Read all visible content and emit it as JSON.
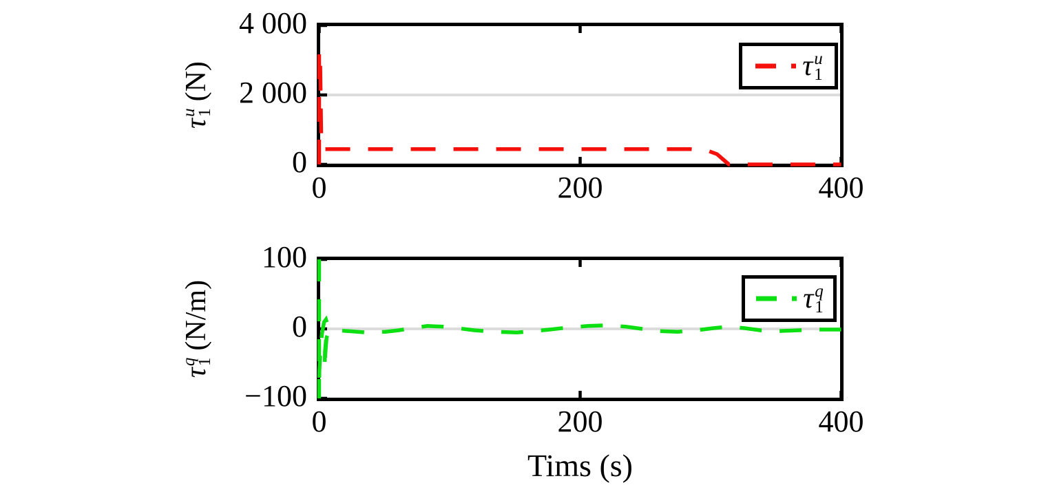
{
  "figure": {
    "xlabel": "Tims (s)",
    "background_color": "#ffffff",
    "axis_color": "#000000",
    "gridline_color": "#dcdcdc"
  },
  "chart_data": [
    {
      "type": "line",
      "title": "",
      "ylabel": {
        "base": "τ",
        "sub": "1",
        "sup": "u",
        "unit": "(N)"
      },
      "legend": {
        "base": "τ",
        "sub": "1",
        "sup": "u",
        "position": "top-right"
      },
      "line": {
        "color": "#f5100c",
        "style": "dashed"
      },
      "xlim": [
        0,
        400
      ],
      "ylim": [
        0,
        4000
      ],
      "xticks": [
        0,
        200,
        400
      ],
      "xtick_labels": [
        "0",
        "200",
        "400"
      ],
      "yticks": [
        0,
        2000,
        4000
      ],
      "ytick_labels": [
        "0",
        "2 000",
        "4 000"
      ],
      "gridlines_y": [
        0,
        2000
      ],
      "grid": "horizontal-only",
      "series": [
        {
          "name": "tau_1_u",
          "color": "#f5100c",
          "dash": [
            36,
            26
          ],
          "points": [
            [
              1,
              0
            ],
            [
              1,
              3200
            ],
            [
              2.5,
              3200
            ],
            [
              3.5,
              600
            ],
            [
              6,
              500
            ],
            [
              284,
              500
            ],
            [
              296,
              468
            ],
            [
              304,
              360
            ],
            [
              309,
              200
            ],
            [
              313,
              40
            ],
            [
              316,
              0
            ],
            [
              400,
              0
            ]
          ]
        }
      ]
    },
    {
      "type": "line",
      "title": "",
      "ylabel": {
        "base": "τ",
        "sub": "1",
        "sup": "q",
        "unit": "(N/m)"
      },
      "legend": {
        "base": "τ",
        "sub": "1",
        "sup": "q",
        "position": "top-right"
      },
      "line": {
        "color": "#0cdf12",
        "style": "dashed"
      },
      "xlim": [
        0,
        400
      ],
      "ylim": [
        -100,
        100
      ],
      "xticks": [
        0,
        200,
        400
      ],
      "xtick_labels": [
        "0",
        "200",
        "400"
      ],
      "yticks": [
        -100,
        0,
        100
      ],
      "ytick_labels": [
        "−100",
        "0",
        "100"
      ],
      "gridlines_y": [
        0
      ],
      "grid": "horizontal-only",
      "series": [
        {
          "name": "tau_1_q",
          "color": "#0cdf12",
          "dash": [
            32,
            26
          ],
          "points": [
            [
              1,
              100
            ],
            [
              1,
              -100
            ],
            [
              2,
              -58
            ],
            [
              3,
              -24
            ],
            [
              4,
              -6
            ],
            [
              5.5,
              9
            ],
            [
              7,
              13
            ],
            [
              8,
              7
            ],
            [
              8,
              -4
            ],
            [
              7,
              -16
            ],
            [
              6.2,
              -32
            ],
            [
              6,
              -55
            ],
            [
              6.5,
              -35
            ],
            [
              7.5,
              -12
            ],
            [
              9,
              -4
            ],
            [
              14,
              -2
            ],
            [
              24,
              -3
            ],
            [
              38,
              -5
            ],
            [
              52,
              -4
            ],
            [
              62,
              -2
            ],
            [
              72,
              1
            ],
            [
              84,
              4
            ],
            [
              96,
              3
            ],
            [
              107,
              1
            ],
            [
              120,
              -2
            ],
            [
              136,
              -4
            ],
            [
              152,
              -5
            ],
            [
              165,
              -3
            ],
            [
              177,
              -1
            ],
            [
              191,
              2
            ],
            [
              206,
              4
            ],
            [
              221,
              5
            ],
            [
              235,
              3
            ],
            [
              247,
              0
            ],
            [
              260,
              -3
            ],
            [
              274,
              -4
            ],
            [
              288,
              -2
            ],
            [
              301,
              1
            ],
            [
              313,
              3
            ],
            [
              325,
              1
            ],
            [
              337,
              -2
            ],
            [
              351,
              -3
            ],
            [
              365,
              -2
            ],
            [
              379,
              -1
            ],
            [
              400,
              -1
            ]
          ]
        }
      ]
    }
  ]
}
